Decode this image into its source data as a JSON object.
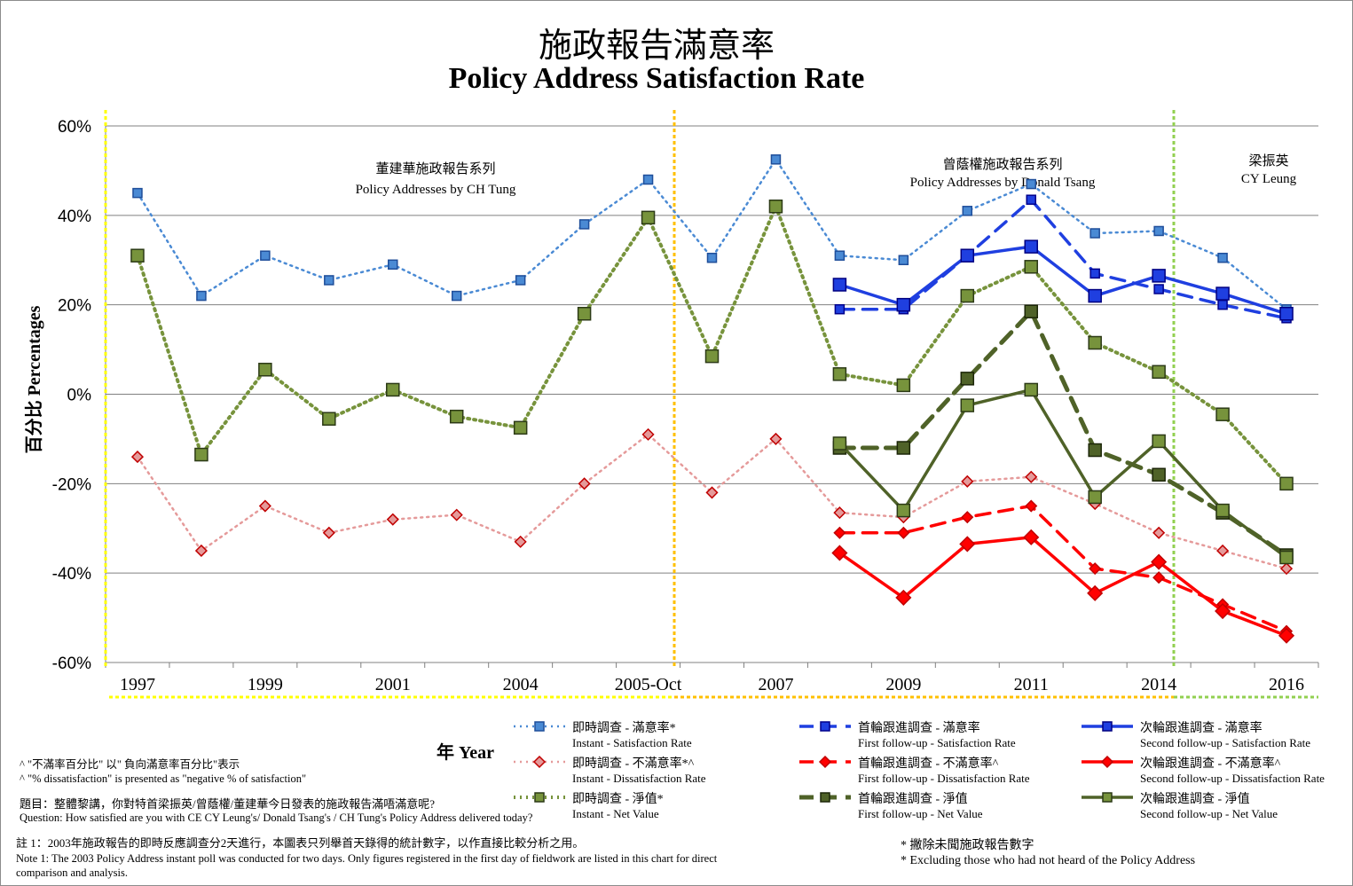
{
  "title_zh": "施政報告滿意率",
  "title_en": "Policy Address Satisfaction Rate",
  "chart_data": {
    "type": "line",
    "title": "Policy Address Satisfaction Rate",
    "ylabel": "百分比 Percentages",
    "xlabel": "年 Year",
    "ylim": [
      -60,
      60
    ],
    "y_ticks": [
      "60%",
      "40%",
      "20%",
      "0%",
      "-20%",
      "-40%",
      "-60%"
    ],
    "x_tick_labels": [
      "1997",
      "1999",
      "2001",
      "2004",
      "2005-Oct",
      "2007",
      "2009",
      "2011",
      "2014",
      "2016"
    ],
    "x_tick_positions": [
      0,
      2,
      4,
      6,
      8,
      10,
      12,
      14,
      16,
      18
    ],
    "grid": true,
    "series": [
      {
        "name": "即時調查 - 滿意率*",
        "color": "#4a8ad4",
        "style": "dotted",
        "marker": "square",
        "values": [
          45,
          22,
          31,
          25.5,
          29,
          22,
          25.5,
          38,
          48,
          30.5,
          52.5,
          31,
          30,
          41,
          47,
          36,
          36.5,
          30.5,
          19
        ]
      },
      {
        "name": "即時調查 - 不滿意率*^",
        "color": "#e59a9a",
        "style": "dotted",
        "marker": "diamond",
        "values": [
          -14,
          -35,
          -25,
          -31,
          -28,
          -27,
          -33,
          -20,
          -9,
          -22,
          -10,
          -26.5,
          -27.5,
          -19.5,
          -18.5,
          -24.5,
          -31,
          -35,
          -39
        ]
      },
      {
        "name": "即時調查 - 淨值*",
        "color": "#77933c",
        "style": "dotted",
        "marker": "square",
        "values": [
          31,
          -13.5,
          5.5,
          -5.5,
          1,
          -5,
          -7.5,
          18,
          39.5,
          8.5,
          42,
          4.5,
          2,
          22,
          28.5,
          11.5,
          5,
          -4.5,
          -20
        ]
      },
      {
        "name": "首輪跟進調查 - 滿意率",
        "color": "#1f3fe0",
        "style": "dashed",
        "marker": "square",
        "values": [
          null,
          null,
          null,
          null,
          null,
          null,
          null,
          null,
          null,
          null,
          null,
          19,
          19,
          31,
          43.5,
          27,
          23.5,
          20,
          17
        ]
      },
      {
        "name": "首輪跟進調查 - 不滿意率^",
        "color": "#ff0000",
        "style": "dashed",
        "marker": "diamond",
        "values": [
          null,
          null,
          null,
          null,
          null,
          null,
          null,
          null,
          null,
          null,
          null,
          -31,
          -31,
          -27.5,
          -25,
          -39,
          -41,
          -47,
          -53
        ]
      },
      {
        "name": "首輪跟進調查 - 淨值",
        "color": "#4f6228",
        "style": "dashed",
        "marker": "square",
        "values": [
          null,
          null,
          null,
          null,
          null,
          null,
          null,
          null,
          null,
          null,
          null,
          -12,
          -12,
          3.5,
          18.5,
          -12.5,
          -18,
          -26.5,
          -36
        ]
      },
      {
        "name": "次輪跟進調查 - 滿意率",
        "color": "#1f3fe0",
        "style": "solid",
        "marker": "square",
        "values": [
          null,
          null,
          null,
          null,
          null,
          null,
          null,
          null,
          null,
          null,
          null,
          24.5,
          20,
          31,
          33,
          22,
          26.5,
          22.5,
          18
        ]
      },
      {
        "name": "次輪跟進調查 - 不滿意率^",
        "color": "#ff0000",
        "style": "solid",
        "marker": "diamond",
        "values": [
          null,
          null,
          null,
          null,
          null,
          null,
          null,
          null,
          null,
          null,
          null,
          -35.5,
          -45.5,
          -33.5,
          -32,
          -44.5,
          -37.5,
          -48.5,
          -54
        ]
      },
      {
        "name": "次輪跟進調查 - 淨值",
        "color": "#4f6228",
        "style": "solid",
        "marker": "square",
        "values": [
          null,
          null,
          null,
          null,
          null,
          null,
          null,
          null,
          null,
          null,
          null,
          -11,
          -26,
          -2.5,
          1,
          -23,
          -10.5,
          -26,
          -36.5
        ]
      }
    ],
    "periods": [
      {
        "label_zh": "董建華施政報告系列",
        "label_en": "Policy Addresses by CH Tung",
        "color": "#ffff00"
      },
      {
        "label_zh": "曾蔭權施政報告系列",
        "label_en": "Policy Addresses by Donald Tsang",
        "color": "#ffc000"
      },
      {
        "label_zh": "梁振英",
        "label_en": "CY Leung",
        "color": "#92d050"
      }
    ]
  },
  "legend": [
    {
      "zh": "即時調查 - 滿意率*",
      "en": "Instant - Satisfaction Rate"
    },
    {
      "zh": "首輪跟進調查 - 滿意率",
      "en": "First follow-up - Satisfaction Rate"
    },
    {
      "zh": "次輪跟進調查 - 滿意率",
      "en": "Second follow-up - Satisfaction Rate"
    },
    {
      "zh": "即時調查 - 不滿意率*^",
      "en": "Instant - Dissatisfaction Rate"
    },
    {
      "zh": "首輪跟進調查 - 不滿意率^",
      "en": "First follow-up - Dissatisfaction Rate"
    },
    {
      "zh": "次輪跟進調查 - 不滿意率^",
      "en": "Second follow-up - Dissatisfaction Rate"
    },
    {
      "zh": "即時調查 - 淨值*",
      "en": "Instant - Net Value"
    },
    {
      "zh": "首輪跟進調查 - 淨值",
      "en": "First follow-up - Net Value"
    },
    {
      "zh": "次輪跟進調查 - 淨值",
      "en": "Second follow-up - Net Value"
    }
  ],
  "notes": {
    "caret_zh": "^ \"不滿率百分比\" 以\" 負向滿意率百分比\"表示",
    "caret_en": "^ \"% dissatisfaction\" is presented as \"negative % of satisfaction\"",
    "question_zh": "題目：整體黎講，你對特首梁振英/曾蔭權/董建華今日發表的施政報告滿唔滿意呢?",
    "question_en": "Question: How satisfied are you with CE CY Leung's/ Donald Tsang's / CH Tung's Policy Address delivered today?",
    "note1_zh": "註 1：2003年施政報告的即時反應調查分2天進行，本圖表只列舉首天錄得的統計數字，以作直接比較分析之用。",
    "note1_en_1": "Note 1: The 2003 Policy Address instant poll was conducted for two days. Only figures registered in the first day of fieldwork are listed in this chart for direct",
    "note1_en_2": "comparison and analysis.",
    "star_zh": "* 撇除未聞施政報告數字",
    "star_en": "* Excluding those who had not heard of the Policy Address"
  }
}
